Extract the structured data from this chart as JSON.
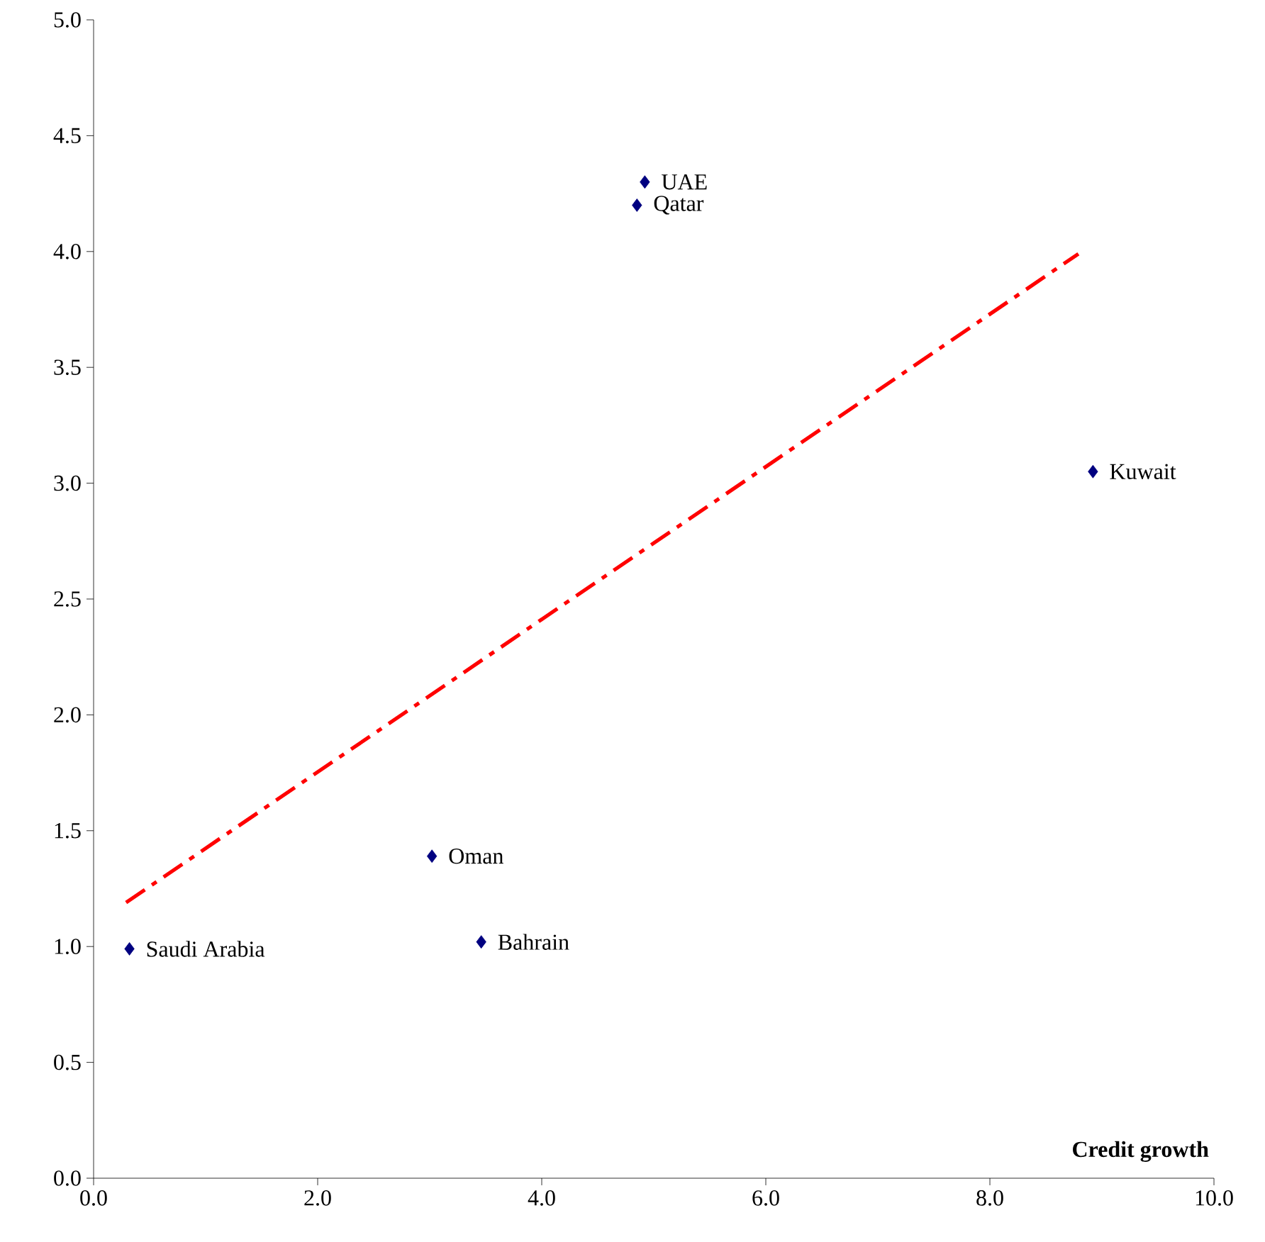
{
  "chart_data": {
    "type": "scatter",
    "xlabel": "**Credit growth**",
    "xlim": [
      0,
      10
    ],
    "ylim": [
      0,
      5
    ],
    "xticks": [
      {
        "value": 0,
        "label": "0.0"
      },
      {
        "value": 2,
        "label": "2.0"
      },
      {
        "value": 4,
        "label": "4.0"
      },
      {
        "value": 6,
        "label": "6.0"
      },
      {
        "value": 8,
        "label": "8.0"
      },
      {
        "value": 10,
        "label": "10.0"
      }
    ],
    "yticks": [
      {
        "value": 0,
        "label": "0.0"
      },
      {
        "value": 0.5,
        "label": "0.5"
      },
      {
        "value": 1,
        "label": "1.0"
      },
      {
        "value": 1.5,
        "label": "1.5"
      },
      {
        "value": 2,
        "label": "2.0"
      },
      {
        "value": 2.5,
        "label": "2.5"
      },
      {
        "value": 3,
        "label": "3.0"
      },
      {
        "value": 3.5,
        "label": "3.5"
      },
      {
        "value": 4,
        "label": "4.0"
      },
      {
        "value": 4.5,
        "label": "4.5"
      },
      {
        "value": 5,
        "label": "5.0"
      }
    ],
    "series": [
      {
        "color": "#000080",
        "marker": "diamond",
        "x": [
          0.32,
          3.02,
          3.46,
          4.85,
          4.92,
          8.92
        ],
        "values": [
          0.99,
          1.39,
          1.02,
          4.2,
          4.3,
          3.05
        ]
      },
      {
        "type": "line",
        "color": "#ff0000",
        "line_style": "dashdot",
        "marker": "none",
        "x": [
          0.29,
          8.79
        ],
        "values": [
          1.19,
          3.99
        ]
      }
    ],
    "annotations": [
      {
        "text": "Saudi Arabia",
        "x": 0.32,
        "y": 0.99
      },
      {
        "text": "Oman",
        "x": 3.02,
        "y": 1.39
      },
      {
        "text": "Bahrain",
        "x": 3.46,
        "y": 1.02
      },
      {
        "text": "Qatar",
        "x": 4.85,
        "y": 4.2
      },
      {
        "text": "UAE",
        "x": 4.92,
        "y": 4.3
      },
      {
        "text": "Kuwait",
        "x": 8.92,
        "y": 3.05
      }
    ]
  }
}
